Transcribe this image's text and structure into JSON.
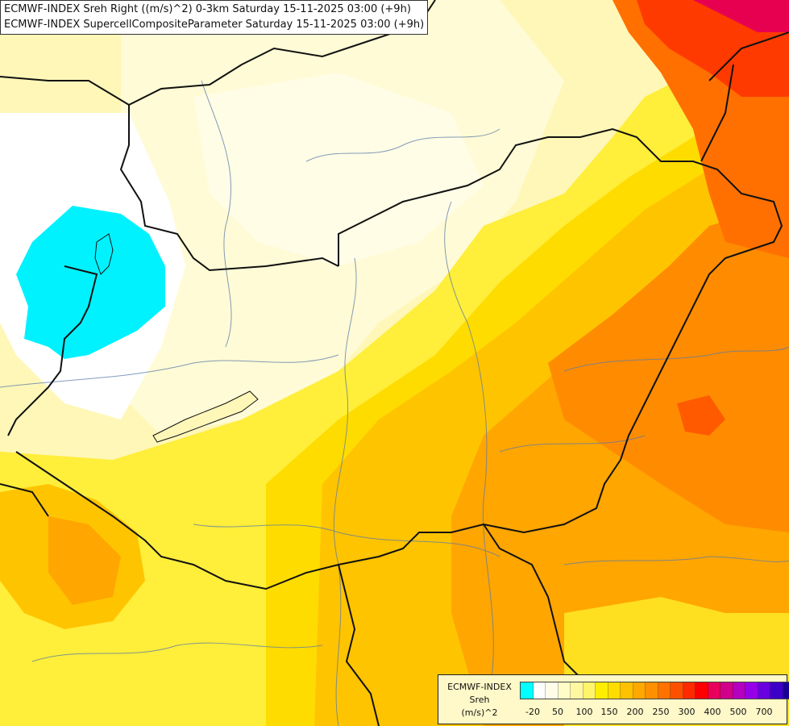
{
  "title": {
    "line1": "ECMWF-INDEX Sreh Right ((m/s)^2) 0-3km Saturday 15-11-2025 03:00 (+9h)",
    "line2": "ECMWF-INDEX SupercellCompositeParameter Saturday 15-11-2025 03:00 (+9h)"
  },
  "legend": {
    "line1": "ECMWF-INDEX",
    "line2": "Sreh",
    "line3": "(m/s)^2",
    "colors": [
      "#00ffff",
      "#ffffff",
      "#fffde8",
      "#fffcc8",
      "#fff8a0",
      "#fff46a",
      "#ffee00",
      "#ffdd00",
      "#ffc000",
      "#ffa800",
      "#ff9000",
      "#ff7200",
      "#ff5000",
      "#ff2a00",
      "#ff0000",
      "#e8005a",
      "#d0008a",
      "#b400c0",
      "#9600e8",
      "#6800e0",
      "#3c00c8",
      "#1a0090"
    ],
    "ticks": [
      "-20",
      "50",
      "100",
      "150",
      "200",
      "250",
      "300",
      "400",
      "500",
      "700"
    ]
  },
  "map": {
    "field": "Sreh",
    "units": "(m/s)^2"
  }
}
